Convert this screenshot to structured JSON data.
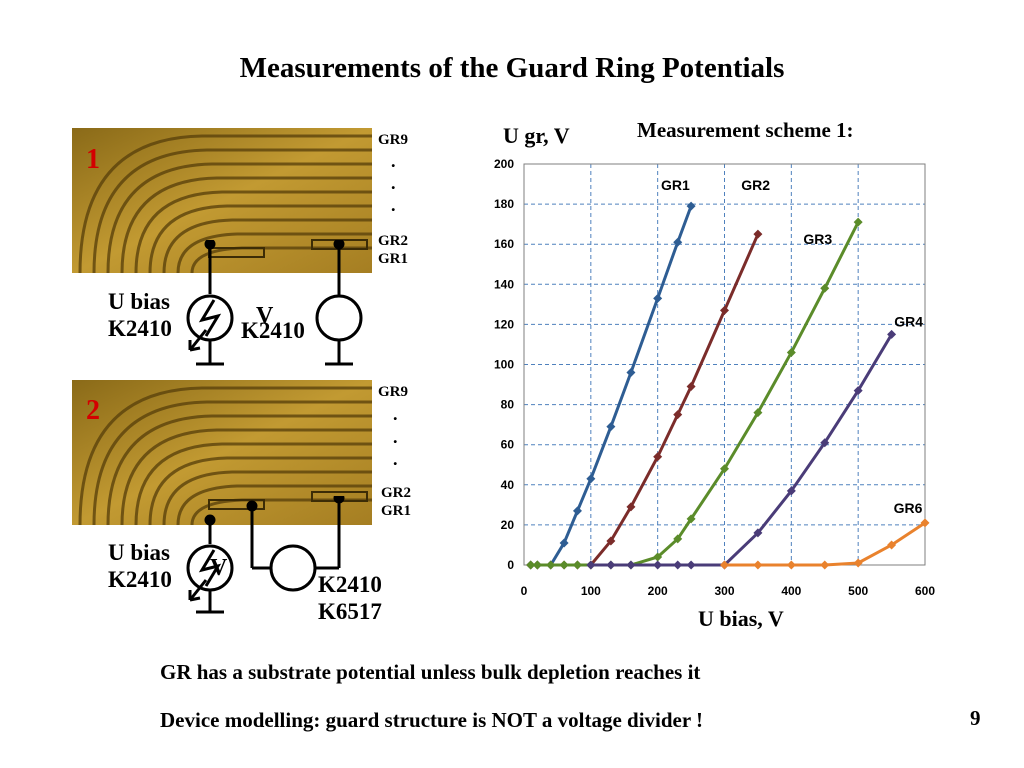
{
  "slide": {
    "title": "Measurements of the Guard Ring Potentials",
    "scheme_title": "Measurement scheme 1:",
    "footer_line1": "GR has a substrate potential unless bulk depletion reaches it",
    "footer_line2": "Device modelling: guard structure is NOT a voltage divider !",
    "page_number": "9"
  },
  "schematic1": {
    "number": "1",
    "gr_top": "GR9",
    "dots": [
      ".",
      ".",
      "."
    ],
    "gr2": "GR2",
    "gr1": "GR1",
    "bias_label": "U bias\nK2410",
    "meter_label": "K2410",
    "meter_symbol": "V"
  },
  "schematic2": {
    "number": "2",
    "gr_top": "GR9",
    "dots": [
      ".",
      ".",
      "."
    ],
    "gr2": "GR2",
    "gr1": "GR1",
    "bias_label": "U bias\nK2410",
    "meter_label": "K2410\nK6517",
    "meter_symbol": "V"
  },
  "colors": {
    "photo_gold": "#b8922a",
    "number_red": "#d40000",
    "grid_blue": "#4f81bd"
  },
  "chart_data": {
    "type": "line",
    "ylabel": "U gr, V",
    "xlabel": "U bias, V",
    "xlim": [
      0,
      600
    ],
    "ylim": [
      0,
      200
    ],
    "xticks": [
      0,
      100,
      200,
      300,
      400,
      500,
      600
    ],
    "yticks": [
      0,
      20,
      40,
      60,
      80,
      100,
      120,
      140,
      160,
      180,
      200
    ],
    "grid": true,
    "series": [
      {
        "name": "GR1",
        "color": "#2e5d93",
        "x": [
          10,
          20,
          40,
          60,
          80,
          100,
          130,
          160,
          200,
          230,
          250
        ],
        "y": [
          0,
          0,
          0,
          11,
          27,
          43,
          69,
          96,
          133,
          161,
          179
        ]
      },
      {
        "name": "GR2",
        "color": "#7b2c2a",
        "x": [
          10,
          20,
          40,
          60,
          80,
          100,
          130,
          160,
          200,
          230,
          250,
          300,
          350
        ],
        "y": [
          0,
          0,
          0,
          0,
          0,
          0,
          12,
          29,
          54,
          75,
          89,
          127,
          165
        ]
      },
      {
        "name": "GR3",
        "color": "#5b8c2a",
        "x": [
          10,
          20,
          40,
          60,
          80,
          100,
          130,
          160,
          200,
          230,
          250,
          300,
          350,
          400,
          450,
          500
        ],
        "y": [
          0,
          0,
          0,
          0,
          0,
          0,
          0,
          0,
          4,
          13,
          23,
          48,
          76,
          106,
          138,
          171
        ]
      },
      {
        "name": "GR4",
        "color": "#4a3c78",
        "x": [
          100,
          130,
          160,
          200,
          230,
          250,
          300,
          350,
          400,
          450,
          500,
          550
        ],
        "y": [
          0,
          0,
          0,
          0,
          0,
          0,
          0,
          16,
          37,
          61,
          87,
          115
        ]
      },
      {
        "name": "GR6",
        "color": "#e9822d",
        "x": [
          300,
          350,
          400,
          450,
          500,
          550,
          600
        ],
        "y": [
          0,
          0,
          0,
          0,
          1,
          10,
          21
        ]
      }
    ]
  }
}
